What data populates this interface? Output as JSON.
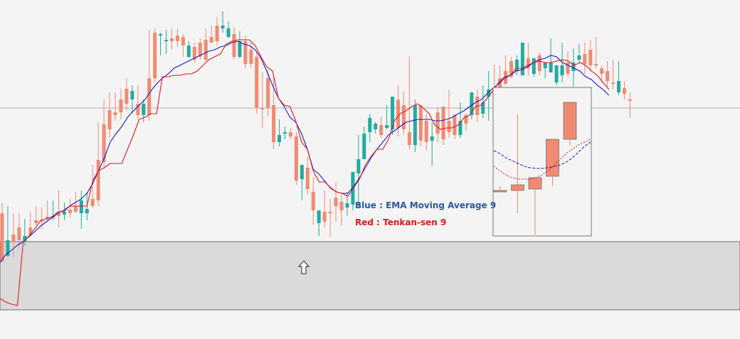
{
  "chart_data": {
    "type": "candlestick",
    "title": "",
    "xlabel": "",
    "ylabel": "",
    "ylim": [
      0,
      477
    ],
    "colors": {
      "up": "#21aba0",
      "down": "#f08a72",
      "ema": "#1a1ac8",
      "tenkan": "#e01a1a",
      "band": "#dadada",
      "grid": "#b0b0b0"
    },
    "legend": {
      "placement": "center-right",
      "entries": [
        {
          "text": "Blue : EMA Moving Average 9",
          "color": "#2a5b9c"
        },
        {
          "text": "Red : Tenkan-sen 9",
          "color": "#e01a1a"
        }
      ]
    },
    "annotation": {
      "type": "up-arrow",
      "label": ""
    },
    "candles": [
      [
        300,
        285,
        368,
        340
      ],
      [
        360,
        290,
        338,
        362
      ],
      [
        330,
        300,
        340,
        362
      ],
      [
        320,
        300,
        338,
        350
      ],
      [
        340,
        308,
        332,
        346
      ],
      [
        320,
        298,
        330,
        330
      ],
      [
        310,
        290,
        314,
        318
      ],
      [
        310,
        292,
        310,
        322
      ],
      [
        305,
        282,
        308,
        312
      ],
      [
        305,
        282,
        304,
        310
      ],
      [
        300,
        268,
        304,
        320
      ],
      [
        302,
        285,
        298,
        310
      ],
      [
        295,
        280,
        300,
        306
      ],
      [
        290,
        270,
        298,
        300
      ],
      [
        300,
        268,
        282,
        322
      ],
      [
        300,
        270,
        294,
        310
      ],
      [
        280,
        232,
        290,
        292
      ],
      [
        225,
        172,
        282,
        290
      ],
      [
        175,
        140,
        228,
        236
      ],
      [
        155,
        130,
        182,
        194
      ],
      [
        158,
        130,
        162,
        170
      ],
      [
        140,
        125,
        158,
        168
      ],
      [
        125,
        110,
        146,
        156
      ],
      [
        140,
        120,
        128,
        160
      ],
      [
        146,
        120,
        162,
        168
      ],
      [
        162,
        140,
        146,
        172
      ],
      [
        110,
        42,
        162,
        170
      ],
      [
        46,
        40,
        110,
        116
      ],
      [
        50,
        46,
        48,
        78
      ],
      [
        58,
        42,
        56,
        76
      ],
      [
        54,
        40,
        58,
        70
      ],
      [
        50,
        40,
        58,
        66
      ],
      [
        52,
        48,
        64,
        80
      ],
      [
        80,
        58,
        64,
        82
      ],
      [
        66,
        60,
        84,
        88
      ],
      [
        60,
        54,
        80,
        84
      ],
      [
        56,
        40,
        84,
        86
      ],
      [
        52,
        36,
        60,
        60
      ],
      [
        36,
        24,
        58,
        64
      ],
      [
        40,
        16,
        36,
        46
      ],
      [
        52,
        30,
        40,
        54
      ],
      [
        48,
        38,
        80,
        84
      ],
      [
        80,
        44,
        58,
        82
      ],
      [
        58,
        50,
        90,
        96
      ],
      [
        70,
        60,
        90,
        96
      ],
      [
        80,
        72,
        152,
        160
      ],
      [
        152,
        102,
        152,
        180
      ],
      [
        110,
        98,
        152,
        164
      ],
      [
        148,
        108,
        200,
        210
      ],
      [
        200,
        168,
        190,
        206
      ],
      [
        188,
        178,
        186,
        196
      ],
      [
        186,
        180,
        192,
        196
      ],
      [
        192,
        186,
        254,
        260
      ],
      [
        252,
        234,
        232,
        282
      ],
      [
        236,
        220,
        266,
        274
      ],
      [
        270,
        250,
        296,
        316
      ],
      [
        314,
        296,
        296,
        332
      ],
      [
        298,
        268,
        312,
        320
      ],
      [
        298,
        280,
        298,
        334
      ],
      [
        278,
        256,
        290,
        312
      ],
      [
        284,
        272,
        296,
        318
      ],
      [
        292,
        270,
        286,
        304
      ],
      [
        288,
        248,
        242,
        296
      ],
      [
        244,
        190,
        224,
        292
      ],
      [
        224,
        178,
        188,
        196
      ],
      [
        186,
        160,
        166,
        200
      ],
      [
        182,
        172,
        174,
        188
      ],
      [
        176,
        164,
        190,
        194
      ],
      [
        180,
        148,
        176,
        182
      ],
      [
        182,
        174,
        136,
        190
      ],
      [
        140,
        120,
        180,
        192
      ],
      [
        148,
        128,
        182,
        190
      ],
      [
        186,
        80,
        204,
        210
      ],
      [
        204,
        140,
        148,
        214
      ],
      [
        148,
        150,
        198,
        206
      ],
      [
        170,
        160,
        200,
        212
      ],
      [
        198,
        172,
        192,
        234
      ],
      [
        158,
        150,
        188,
        200
      ],
      [
        150,
        160,
        196,
        204
      ],
      [
        170,
        126,
        186,
        194
      ],
      [
        162,
        160,
        190,
        196
      ],
      [
        190,
        144,
        170,
        194
      ],
      [
        162,
        160,
        174,
        184
      ],
      [
        162,
        150,
        130,
        168
      ],
      [
        136,
        126,
        162,
        172
      ],
      [
        160,
        120,
        144,
        166
      ],
      [
        136,
        100,
        126,
        170
      ],
      [
        126,
        90,
        136,
        142
      ],
      [
        110,
        92,
        126,
        132
      ],
      [
        100,
        78,
        118,
        120
      ],
      [
        86,
        80,
        108,
        110
      ],
      [
        100,
        78,
        84,
        106
      ],
      [
        106,
        100,
        60,
        80
      ],
      [
        82,
        60,
        96,
        106
      ],
      [
        104,
        82,
        82,
        108
      ],
      [
        78,
        74,
        100,
        106
      ],
      [
        96,
        90,
        88,
        110
      ],
      [
        102,
        54,
        88,
        96
      ],
      [
        116,
        98,
        92,
        120
      ],
      [
        106,
        60,
        92,
        116
      ],
      [
        88,
        72,
        104,
        108
      ],
      [
        100,
        68,
        88,
        122
      ],
      [
        84,
        62,
        78,
        88
      ],
      [
        76,
        60,
        90,
        104
      ],
      [
        70,
        56,
        92,
        100
      ],
      [
        90,
        52,
        90,
        96
      ],
      [
        96,
        92,
        104,
        116
      ],
      [
        100,
        86,
        114,
        122
      ],
      [
        116,
        84,
        118,
        126
      ],
      [
        130,
        86,
        114,
        134
      ],
      [
        124,
        114,
        132,
        140
      ],
      [
        140,
        130,
        142,
        166
      ]
    ],
    "ema_line": [
      370,
      358,
      352,
      345,
      340,
      333,
      326,
      318,
      312,
      306,
      300,
      296,
      290,
      285,
      280,
      272,
      258,
      240,
      222,
      200,
      188,
      178,
      165,
      156,
      148,
      140,
      128,
      118,
      110,
      104,
      96,
      92,
      88,
      84,
      80,
      76,
      72,
      70,
      66,
      64,
      60,
      58,
      62,
      64,
      70,
      82,
      100,
      120,
      138,
      150,
      165,
      172,
      188,
      210,
      238,
      245,
      255,
      265,
      270,
      272,
      272,
      262,
      250,
      236,
      222,
      210,
      200,
      190,
      184,
      178,
      172,
      170,
      168,
      168,
      168,
      170,
      170,
      168,
      165,
      160,
      156,
      150,
      144,
      140,
      132,
      124,
      118,
      110,
      106,
      100,
      98,
      94,
      88,
      84,
      82,
      78,
      80,
      88,
      92,
      96,
      100,
      108,
      112,
      120,
      126,
      134
    ],
    "tenkan_line": [
      420,
      425,
      428,
      430,
      340,
      332,
      322,
      310,
      308,
      305,
      298,
      298,
      290,
      290,
      290,
      290,
      254,
      240,
      236,
      230,
      230,
      230,
      210,
      190,
      168,
      165,
      160,
      160,
      108,
      108,
      106,
      106,
      104,
      104,
      100,
      92,
      84,
      80,
      76,
      62,
      58,
      56,
      56,
      56,
      64,
      80,
      94,
      100,
      138,
      148,
      150,
      170,
      200,
      210,
      240,
      256,
      256,
      264,
      270,
      272,
      276,
      264,
      252,
      232,
      220,
      210,
      210,
      196,
      170,
      160,
      156,
      150,
      146,
      152,
      160,
      176,
      182,
      180,
      180,
      176,
      166,
      162,
      150,
      148,
      138,
      128,
      116,
      108,
      106,
      96,
      96,
      92,
      88,
      86,
      88,
      88,
      86,
      84,
      86,
      92,
      88,
      92,
      100,
      106,
      116,
      126
    ],
    "inset": {
      "candles": [
        [
          268,
          262,
          270,
          270
        ],
        [
          260,
          160,
          268,
          300
        ],
        [
          250,
          252,
          266,
          330
        ],
        [
          196,
          196,
          248,
          262
        ],
        [
          144,
          144,
          196,
          204
        ]
      ],
      "ema_line": [
        212,
        216,
        222,
        226,
        230,
        234,
        236,
        237,
        237,
        236,
        234,
        232,
        228,
        222,
        214,
        206,
        200
      ],
      "tenkan_line": [
        234,
        240,
        246,
        250,
        252,
        252,
        252,
        250,
        246,
        240,
        232,
        224,
        216,
        210,
        204,
        200,
        196
      ]
    }
  }
}
